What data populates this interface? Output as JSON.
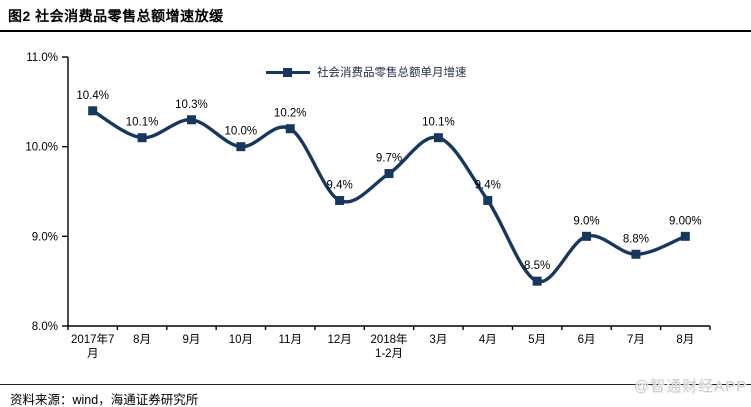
{
  "figure": {
    "title": "图2  社会消费品零售总额增速放缓",
    "source": "资料来源：wind，海通证券研究所",
    "watermark": "@智通财经APP"
  },
  "chart_data": {
    "type": "line",
    "title": "图2 社会消费品零售总额增速放缓",
    "legend_position": "top-center",
    "grid": false,
    "categories": [
      "2017年7月",
      "8月",
      "9月",
      "10月",
      "11月",
      "12月",
      "2018年1-2月",
      "3月",
      "4月",
      "5月",
      "6月",
      "7月",
      "8月"
    ],
    "x_tick_lines": [
      [
        "2017年7",
        "月"
      ],
      [
        "8月"
      ],
      [
        "9月"
      ],
      [
        "10月"
      ],
      [
        "11月"
      ],
      [
        "12月"
      ],
      [
        "2018年",
        "1-2月"
      ],
      [
        "3月"
      ],
      [
        "4月"
      ],
      [
        "5月"
      ],
      [
        "6月"
      ],
      [
        "7月"
      ],
      [
        "8月"
      ]
    ],
    "series": [
      {
        "name": "社会消费品零售总额单月增速",
        "values": [
          10.4,
          10.1,
          10.3,
          10.0,
          10.2,
          9.4,
          9.7,
          10.1,
          9.4,
          8.5,
          9.0,
          8.8,
          9.0
        ],
        "point_labels": [
          "10.4%",
          "10.1%",
          "10.3%",
          "10.0%",
          "10.2%",
          "9.4%",
          "9.7%",
          "10.1%",
          "9.4%",
          "8.5%",
          "9.0%",
          "8.8%",
          "9.00%"
        ]
      }
    ],
    "ylim": [
      8.0,
      11.0
    ],
    "yticks": {
      "values": [
        11.0,
        10.0,
        9.0,
        8.0
      ],
      "labels": [
        "11.0%",
        "10.0%",
        "9.0%",
        "8.0%"
      ]
    },
    "colors": {
      "line": "#17375D",
      "axis": "#000000",
      "tick_text": "#000000",
      "data_label": "#000000",
      "watermark": "#cdcdcd"
    }
  }
}
